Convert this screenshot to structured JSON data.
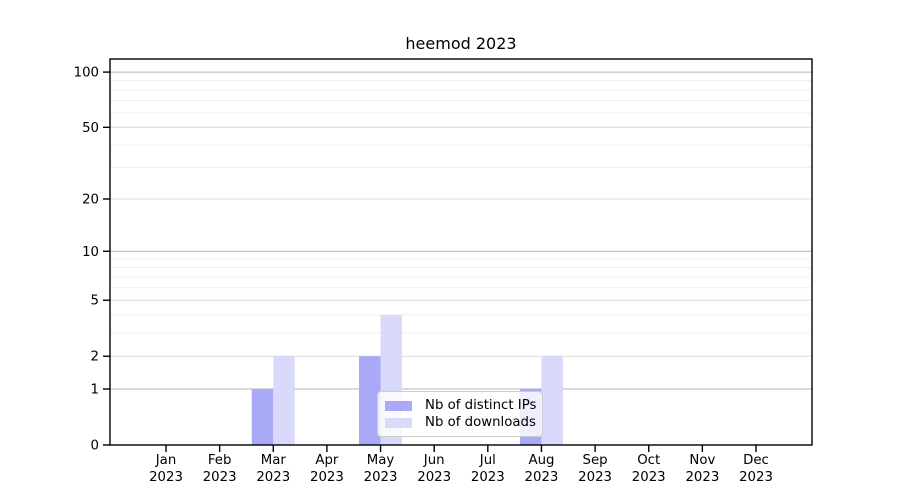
{
  "chart_data": {
    "type": "bar",
    "title": "heemod 2023",
    "categories": [
      "Jan 2023",
      "Feb 2023",
      "Mar 2023",
      "Apr 2023",
      "May 2023",
      "Jun 2023",
      "Jul 2023",
      "Aug 2023",
      "Sep 2023",
      "Oct 2023",
      "Nov 2023",
      "Dec 2023"
    ],
    "series": [
      {
        "name": "Nb of distinct IPs",
        "color": "#a9a9f8",
        "values": [
          0,
          0,
          1,
          0,
          2,
          0,
          0,
          1,
          0,
          0,
          0,
          0
        ]
      },
      {
        "name": "Nb of downloads",
        "color": "#d9d9fb",
        "values": [
          0,
          0,
          2,
          0,
          4,
          0,
          0,
          2,
          0,
          0,
          0,
          0
        ]
      }
    ],
    "xlabel": "",
    "ylabel": "",
    "yscale": "log1p",
    "ylim": [
      0,
      117
    ],
    "yticks": [
      0,
      1,
      2,
      5,
      10,
      20,
      50,
      100
    ],
    "grid": {
      "major_values": [
        1,
        10,
        100
      ],
      "mid_values": [
        2,
        5,
        20,
        50
      ],
      "minor_values": [
        3,
        4,
        6,
        7,
        8,
        9,
        30,
        40,
        60,
        70,
        80,
        90
      ]
    },
    "legend": {
      "position": "inside-lower-center-right"
    }
  },
  "colors": {
    "background": "#ffffff",
    "bar_distinct_ips": "#a9a9f8",
    "bar_downloads": "#d9d9fb",
    "grid_major": "#b5b5b5",
    "grid_mid": "#d9d9d9",
    "grid_minor": "#efefef",
    "spine": "#000000",
    "tick": "#000000",
    "text": "#000000",
    "legend_border": "#cccccc"
  }
}
